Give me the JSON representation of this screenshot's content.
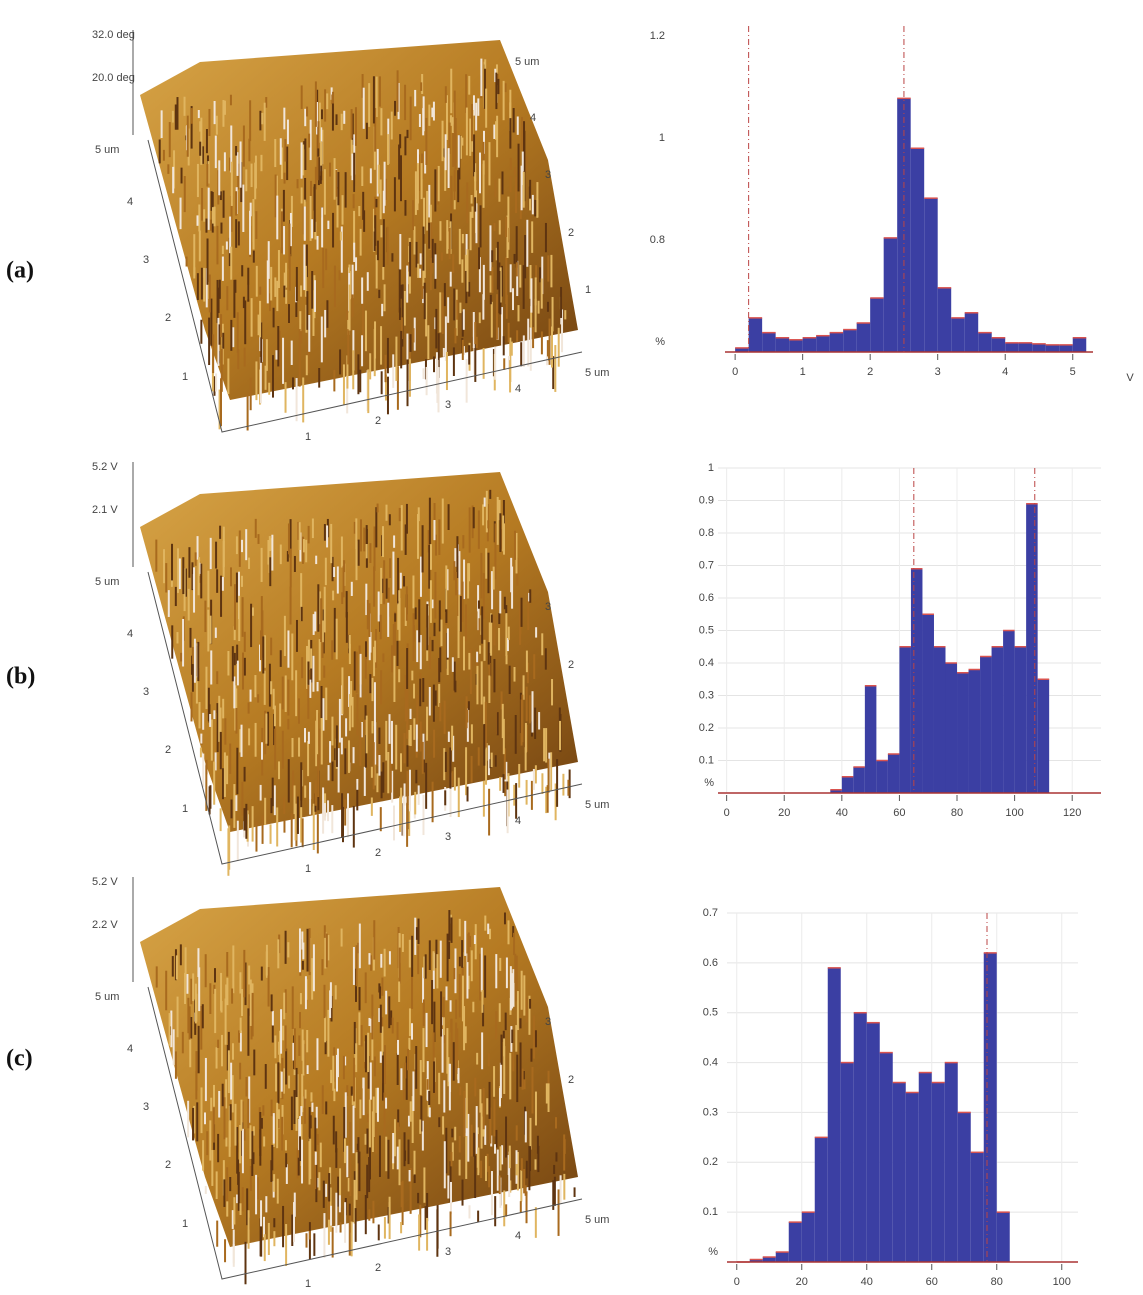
{
  "panels": [
    {
      "label": "(a)",
      "surface": {
        "z_labels": [
          "32.0 deg",
          "20.0 deg"
        ],
        "y_labels": [
          "5 um",
          "4",
          "3",
          "2",
          "1"
        ],
        "x_labels": [
          "1",
          "2",
          "3",
          "4",
          "5 um"
        ],
        "back_labels": [
          "5 um",
          "4",
          "3",
          "2",
          "1"
        ]
      }
    },
    {
      "label": "(b)",
      "surface": {
        "z_labels": [
          "5.2 V",
          "2.1 V"
        ],
        "y_labels": [
          "5 um",
          "4",
          "3",
          "2",
          "1"
        ],
        "x_labels": [
          "1",
          "2",
          "3",
          "4",
          "5 um"
        ],
        "back_labels": [
          "3",
          "2"
        ]
      }
    },
    {
      "label": "(c)",
      "surface": {
        "z_labels": [
          "5.2 V",
          "2.2 V"
        ],
        "y_labels": [
          "5 um",
          "4",
          "3",
          "2",
          "1"
        ],
        "x_labels": [
          "1",
          "2",
          "3",
          "4",
          "5 um"
        ],
        "back_labels": [
          "3",
          "2"
        ]
      }
    }
  ],
  "chart_data": [
    {
      "type": "histogram",
      "xlabel": "V",
      "ylabel": "%",
      "color": "#3b3fa3",
      "edge_color": "#d9534f",
      "grid": false,
      "bins": [
        0,
        0.2,
        0.4,
        0.6,
        0.8,
        1,
        1.2,
        1.4,
        1.6,
        1.8,
        2,
        2.2,
        2.4,
        2.6,
        2.8,
        3,
        3.2,
        3.4,
        3.6,
        3.8,
        4,
        4.2,
        4.4,
        4.6,
        4.8,
        5,
        5.2
      ],
      "values": [
        0.588,
        0.647,
        0.618,
        0.608,
        0.604,
        0.608,
        0.612,
        0.618,
        0.624,
        0.637,
        0.686,
        0.804,
        1.078,
        0.98,
        0.882,
        0.706,
        0.647,
        0.657,
        0.618,
        0.608,
        0.598,
        0.598,
        0.596,
        0.594,
        0.594,
        0.608
      ],
      "markers": [
        0.2,
        2.5
      ],
      "xlim": [
        -0.15,
        5.3
      ],
      "xticks": [
        0,
        1,
        2,
        3,
        4,
        5
      ],
      "ylim": [
        0.58,
        1.22
      ],
      "yticks": [
        0.8,
        1,
        1.2
      ]
    },
    {
      "type": "histogram",
      "ylabel": "%",
      "color": "#3b3fa3",
      "edge_color": "#d9534f",
      "grid": true,
      "bins": [
        36,
        40,
        44,
        48,
        52,
        56,
        60,
        64,
        68,
        72,
        76,
        80,
        84,
        88,
        92,
        96,
        100,
        104,
        108,
        112
      ],
      "values": [
        0.01,
        0.05,
        0.08,
        0.33,
        0.1,
        0.12,
        0.45,
        0.69,
        0.55,
        0.45,
        0.4,
        0.37,
        0.38,
        0.42,
        0.45,
        0.5,
        0.45,
        0.89,
        0.35
      ],
      "markers": [
        65,
        107
      ],
      "xlim": [
        -3,
        130
      ],
      "xticks": [
        0,
        20,
        40,
        60,
        80,
        100,
        120
      ],
      "ylim": [
        0,
        1
      ],
      "yticks": [
        0.1,
        0.2,
        0.3,
        0.4,
        0.5,
        0.6,
        0.7,
        0.8,
        0.9,
        1
      ]
    },
    {
      "type": "histogram",
      "ylabel": "%",
      "color": "#3b3fa3",
      "edge_color": "#d9534f",
      "grid": true,
      "bins": [
        0,
        4,
        8,
        12,
        16,
        20,
        24,
        28,
        32,
        36,
        40,
        44,
        48,
        52,
        56,
        60,
        64,
        68,
        72,
        76,
        80,
        84
      ],
      "values": [
        0,
        0.005,
        0.01,
        0.02,
        0.08,
        0.1,
        0.25,
        0.59,
        0.4,
        0.5,
        0.48,
        0.42,
        0.36,
        0.34,
        0.38,
        0.36,
        0.4,
        0.3,
        0.22,
        0.62,
        0.1
      ],
      "markers": [
        77
      ],
      "xlim": [
        -3,
        105
      ],
      "xticks": [
        0,
        20,
        40,
        60,
        80,
        100
      ],
      "ylim": [
        0,
        0.7
      ],
      "yticks": [
        0.1,
        0.2,
        0.3,
        0.4,
        0.5,
        0.6,
        0.7
      ]
    }
  ]
}
